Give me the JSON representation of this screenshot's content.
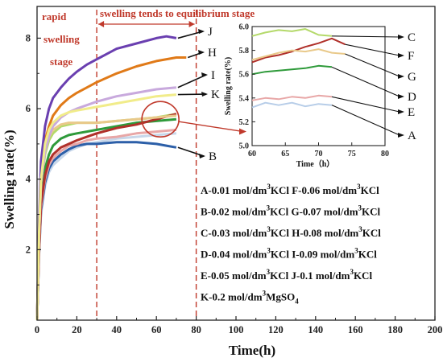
{
  "chart_data": [
    {
      "type": "line",
      "xlabel": "Time(h)",
      "ylabel": "Swelling rate(%)",
      "xlim": [
        0,
        200
      ],
      "ylim": [
        0,
        8.9
      ],
      "xticks": [
        "0",
        "20",
        "40",
        "60",
        "80",
        "100",
        "120",
        "140",
        "160",
        "180",
        "200"
      ],
      "yticks": [
        "2",
        "4",
        "6",
        "8"
      ],
      "stage_labels": {
        "rapid": "rapid",
        "swelling": "swelling",
        "stage": "stage",
        "equilibrium": "swelling tends to equilibrium stage"
      },
      "stage_boundaries_x": [
        30,
        80
      ],
      "series": [
        {
          "name": "A",
          "color": "#c7d7ea",
          "x": [
            0,
            1,
            2,
            4,
            6,
            8,
            12,
            16,
            20,
            25,
            30,
            40,
            50,
            60,
            70
          ],
          "y": [
            0,
            1.8,
            3.0,
            3.8,
            4.2,
            4.4,
            4.6,
            4.8,
            4.9,
            5.0,
            5.05,
            5.15,
            5.2,
            5.25,
            5.3
          ]
        },
        {
          "name": "B",
          "color": "#2c5fa8",
          "x": [
            0,
            1,
            2,
            4,
            6,
            8,
            12,
            16,
            20,
            25,
            30,
            40,
            50,
            60,
            65,
            70
          ],
          "y": [
            0,
            1.9,
            3.1,
            3.9,
            4.3,
            4.5,
            4.7,
            4.85,
            4.95,
            5.0,
            5.0,
            5.05,
            5.05,
            5.0,
            4.95,
            4.9
          ]
        },
        {
          "name": "C",
          "color": "#b4d96a",
          "x": [
            0,
            1,
            2,
            4,
            6,
            8,
            12,
            16,
            20,
            25,
            30,
            40,
            50,
            60,
            70
          ],
          "y": [
            0,
            2.3,
            3.8,
            4.7,
            5.1,
            5.3,
            5.5,
            5.55,
            5.6,
            5.6,
            5.6,
            5.65,
            5.7,
            5.75,
            5.85
          ]
        },
        {
          "name": "D",
          "color": "#2e9a3a",
          "x": [
            0,
            1,
            2,
            4,
            6,
            8,
            12,
            16,
            20,
            25,
            30,
            40,
            50,
            60,
            70
          ],
          "y": [
            0,
            2.0,
            3.4,
            4.3,
            4.7,
            4.95,
            5.15,
            5.25,
            5.3,
            5.35,
            5.4,
            5.5,
            5.6,
            5.65,
            5.7
          ]
        },
        {
          "name": "E",
          "color": "#e8a7a7",
          "x": [
            0,
            1,
            2,
            4,
            6,
            8,
            12,
            16,
            20,
            25,
            30,
            40,
            50,
            60,
            70
          ],
          "y": [
            0,
            1.9,
            3.2,
            4.0,
            4.4,
            4.6,
            4.8,
            4.95,
            5.0,
            5.1,
            5.15,
            5.2,
            5.3,
            5.35,
            5.4
          ]
        },
        {
          "name": "F",
          "color": "#b0302a",
          "x": [
            0,
            1,
            2,
            4,
            6,
            8,
            12,
            16,
            20,
            25,
            30,
            40,
            50,
            60,
            70
          ],
          "y": [
            0,
            2.0,
            3.3,
            4.1,
            4.5,
            4.7,
            4.9,
            5.0,
            5.1,
            5.2,
            5.3,
            5.45,
            5.55,
            5.7,
            5.85
          ]
        },
        {
          "name": "G",
          "color": "#e9c98a",
          "x": [
            0,
            1,
            2,
            4,
            6,
            8,
            12,
            16,
            20,
            25,
            30,
            40,
            50,
            60,
            70
          ],
          "y": [
            0,
            2.4,
            3.9,
            4.8,
            5.2,
            5.4,
            5.55,
            5.6,
            5.6,
            5.6,
            5.6,
            5.65,
            5.7,
            5.75,
            5.8
          ]
        },
        {
          "name": "H",
          "color": "#e07a18",
          "x": [
            0,
            1,
            2,
            4,
            6,
            8,
            12,
            16,
            20,
            25,
            30,
            40,
            50,
            60,
            70,
            75
          ],
          "y": [
            0,
            2.6,
            4.2,
            5.1,
            5.5,
            5.8,
            6.1,
            6.3,
            6.45,
            6.6,
            6.75,
            7.0,
            7.2,
            7.35,
            7.45,
            7.45
          ]
        },
        {
          "name": "I",
          "color": "#c8a9dd",
          "x": [
            0,
            1,
            2,
            4,
            6,
            8,
            12,
            16,
            20,
            25,
            30,
            40,
            50,
            60,
            70
          ],
          "y": [
            0,
            2.4,
            3.9,
            4.8,
            5.2,
            5.5,
            5.75,
            5.9,
            6.0,
            6.1,
            6.2,
            6.35,
            6.45,
            6.55,
            6.6
          ]
        },
        {
          "name": "J",
          "color": "#6a3fb0",
          "x": [
            0,
            1,
            2,
            4,
            6,
            8,
            12,
            16,
            20,
            25,
            30,
            40,
            50,
            60,
            65,
            70
          ],
          "y": [
            0,
            2.8,
            4.5,
            5.5,
            6.0,
            6.3,
            6.6,
            6.85,
            7.05,
            7.25,
            7.4,
            7.7,
            7.85,
            8.0,
            8.05,
            8.0
          ]
        },
        {
          "name": "K",
          "color": "#f1ec8a",
          "x": [
            0,
            1,
            2,
            4,
            6,
            8,
            12,
            16,
            20,
            25,
            30,
            40,
            50,
            60,
            70
          ],
          "y": [
            0,
            2.5,
            4.0,
            5.0,
            5.4,
            5.6,
            5.8,
            5.9,
            5.95,
            6.0,
            6.05,
            6.15,
            6.25,
            6.35,
            6.4
          ]
        }
      ]
    },
    {
      "type": "line",
      "xlabel": "Time（h）",
      "ylabel": "Swelling rate(%)",
      "xlim": [
        60,
        80
      ],
      "ylim": [
        5.0,
        6.0
      ],
      "xticks": [
        "60",
        "65",
        "70",
        "75",
        "80"
      ],
      "yticks": [
        "5.0",
        "5.2",
        "5.4",
        "5.6",
        "5.8",
        "6.0"
      ],
      "series": [
        {
          "name": "A",
          "color": "#b7cde8",
          "x": [
            60,
            62,
            64,
            66,
            68,
            70,
            72
          ],
          "y": [
            5.32,
            5.36,
            5.34,
            5.36,
            5.33,
            5.35,
            5.34
          ]
        },
        {
          "name": "C",
          "color": "#b4d96a",
          "x": [
            60,
            62,
            64,
            66,
            68,
            70,
            72
          ],
          "y": [
            5.92,
            5.95,
            5.97,
            5.96,
            5.98,
            5.93,
            5.92
          ]
        },
        {
          "name": "D",
          "color": "#2e9a3a",
          "x": [
            60,
            62,
            64,
            66,
            68,
            70,
            72
          ],
          "y": [
            5.6,
            5.62,
            5.63,
            5.64,
            5.65,
            5.67,
            5.66
          ]
        },
        {
          "name": "E",
          "color": "#e8a7a7",
          "x": [
            60,
            62,
            64,
            66,
            68,
            70,
            72
          ],
          "y": [
            5.38,
            5.4,
            5.39,
            5.41,
            5.4,
            5.42,
            5.41
          ]
        },
        {
          "name": "F",
          "color": "#b0302a",
          "x": [
            60,
            62,
            64,
            66,
            68,
            70,
            72,
            74
          ],
          "y": [
            5.7,
            5.74,
            5.76,
            5.79,
            5.83,
            5.86,
            5.9,
            5.85
          ]
        },
        {
          "name": "G",
          "color": "#e9c98a",
          "x": [
            60,
            62,
            64,
            66,
            68,
            70,
            72,
            74
          ],
          "y": [
            5.72,
            5.75,
            5.78,
            5.8,
            5.79,
            5.81,
            5.78,
            5.77
          ]
        }
      ],
      "end_labels": [
        "C",
        "F",
        "G",
        "D",
        "E",
        "A"
      ]
    }
  ],
  "legend_lines": [
    [
      "A-0.01 mol/dm",
      "3",
      "KCl  F-0.06 mol/dm",
      "3",
      "KCl"
    ],
    [
      "B-0.02 mol/dm",
      "3",
      "KCl  G-0.07 mol/dm",
      "3",
      "KCl"
    ],
    [
      "C-0.03 mol/dm",
      "3",
      "KCl  H-0.08 mol/dm",
      "3",
      "KCl"
    ],
    [
      "D-0.04 mol/dm",
      "3",
      "KCl  I-0.09 mol/dm",
      "3",
      "KCl"
    ],
    [
      "E-0.05 mol/dm",
      "3",
      "KCl  J-0.1 mol/dm",
      "3",
      "KCl"
    ],
    [
      "K-0.2 mol/dm",
      "3",
      "MgSO",
      "4",
      ""
    ]
  ],
  "main_labels": [
    "J",
    "H",
    "I",
    "K",
    "B"
  ]
}
